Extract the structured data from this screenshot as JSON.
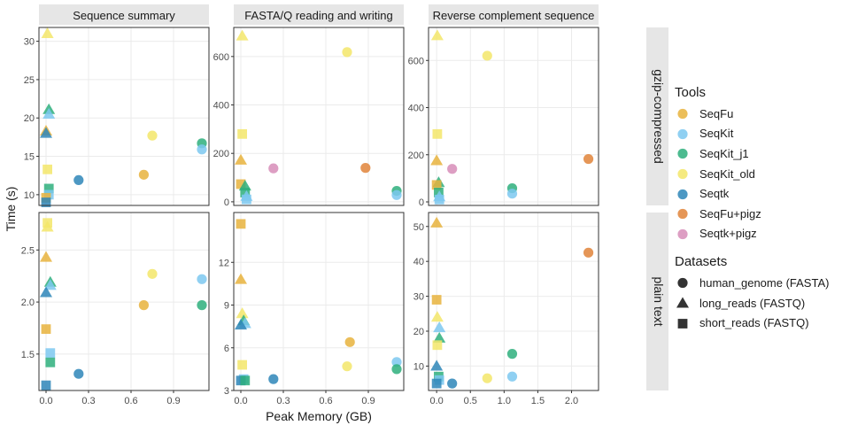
{
  "colors": {
    "SeqFu": "#E8B33D",
    "SeqKit": "#7CC8F0",
    "SeqKit_j1": "#2EAF7D",
    "SeqKit_old": "#F3E66A",
    "Seqtk": "#2E86B8",
    "SeqFu+pigz": "#E0843A",
    "Seqtk+pigz": "#D78DB8",
    "panel_bg": "#ffffff",
    "strip_bg": "#e6e6e6",
    "grid": "#ebebeb",
    "axis_text": "#4d4d4d"
  },
  "axes": {
    "ylabel": "Time (s)",
    "xlabel": "Peak Memory (GB)"
  },
  "legend": {
    "tools_title": "Tools",
    "tools": [
      "SeqFu",
      "SeqKit",
      "SeqKit_j1",
      "SeqKit_old",
      "Seqtk",
      "SeqFu+pigz",
      "Seqtk+pigz"
    ],
    "datasets_title": "Datasets",
    "datasets": [
      {
        "label": "human_genome (FASTA)",
        "shape": "circle"
      },
      {
        "label": "long_reads (FASTQ)",
        "shape": "triangle"
      },
      {
        "label": "short_reads (FASTQ)",
        "shape": "square"
      }
    ]
  },
  "chart_data": {
    "type": "scatter",
    "columns": [
      "Sequence summary",
      "FASTA/Q reading and writing",
      "Reverse complement sequence"
    ],
    "rows": [
      "gzip-compressed",
      "plain text"
    ],
    "xlabel": "Peak Memory (GB)",
    "ylabel": "Time (s)",
    "panels": [
      {
        "col": 0,
        "row": 0,
        "xlim": [
          -0.05,
          1.15
        ],
        "ylim": [
          8.6,
          31.8
        ],
        "xticks": [
          0.0,
          0.3,
          0.6,
          0.9
        ],
        "xtick_labels": [
          "0.0",
          "0.3",
          "0.6",
          "0.9"
        ],
        "yticks": [
          10,
          15,
          20,
          25,
          30
        ],
        "ytick_labels": [
          "10",
          "15",
          "20",
          "25",
          "30"
        ],
        "points": [
          {
            "tool": "SeqKit_old",
            "dataset": "long_reads (FASTQ)",
            "x": 0.01,
            "y": 31.0
          },
          {
            "tool": "SeqKit_j1",
            "dataset": "long_reads (FASTQ)",
            "x": 0.02,
            "y": 21.1
          },
          {
            "tool": "SeqKit",
            "dataset": "long_reads (FASTQ)",
            "x": 0.02,
            "y": 20.5
          },
          {
            "tool": "SeqFu",
            "dataset": "long_reads (FASTQ)",
            "x": 0.0,
            "y": 18.3
          },
          {
            "tool": "Seqtk",
            "dataset": "long_reads (FASTQ)",
            "x": 0.0,
            "y": 18.0
          },
          {
            "tool": "SeqKit_old",
            "dataset": "short_reads (FASTQ)",
            "x": 0.01,
            "y": 13.3
          },
          {
            "tool": "SeqKit_j1",
            "dataset": "short_reads (FASTQ)",
            "x": 0.02,
            "y": 10.8
          },
          {
            "tool": "SeqKit",
            "dataset": "short_reads (FASTQ)",
            "x": 0.02,
            "y": 10.0
          },
          {
            "tool": "SeqFu",
            "dataset": "short_reads (FASTQ)",
            "x": 0.0,
            "y": 9.6
          },
          {
            "tool": "Seqtk",
            "dataset": "short_reads (FASTQ)",
            "x": 0.0,
            "y": 9.0
          },
          {
            "tool": "Seqtk",
            "dataset": "human_genome (FASTA)",
            "x": 0.23,
            "y": 11.9
          },
          {
            "tool": "SeqFu",
            "dataset": "human_genome (FASTA)",
            "x": 0.69,
            "y": 12.6
          },
          {
            "tool": "SeqKit_old",
            "dataset": "human_genome (FASTA)",
            "x": 0.75,
            "y": 17.7
          },
          {
            "tool": "SeqKit_j1",
            "dataset": "human_genome (FASTA)",
            "x": 1.1,
            "y": 16.7
          },
          {
            "tool": "SeqKit",
            "dataset": "human_genome (FASTA)",
            "x": 1.1,
            "y": 15.9
          }
        ]
      },
      {
        "col": 1,
        "row": 0,
        "xlim": [
          -0.05,
          1.15
        ],
        "ylim": [
          -15,
          720
        ],
        "xticks": [
          0.0,
          0.3,
          0.6,
          0.9
        ],
        "xtick_labels": [
          "0.0",
          "0.3",
          "0.6",
          "0.9"
        ],
        "yticks": [
          0,
          200,
          400,
          600
        ],
        "ytick_labels": [
          "0",
          "200",
          "400",
          "600"
        ],
        "points": [
          {
            "tool": "SeqKit_old",
            "dataset": "long_reads (FASTQ)",
            "x": 0.01,
            "y": 685
          },
          {
            "tool": "SeqKit_old",
            "dataset": "human_genome (FASTA)",
            "x": 0.75,
            "y": 618
          },
          {
            "tool": "SeqKit_old",
            "dataset": "short_reads (FASTQ)",
            "x": 0.01,
            "y": 280
          },
          {
            "tool": "SeqFu",
            "dataset": "long_reads (FASTQ)",
            "x": 0.0,
            "y": 172
          },
          {
            "tool": "Seqtk+pigz",
            "dataset": "human_genome (FASTA)",
            "x": 0.23,
            "y": 138
          },
          {
            "tool": "SeqFu+pigz",
            "dataset": "human_genome (FASTA)",
            "x": 0.88,
            "y": 140
          },
          {
            "tool": "SeqFu",
            "dataset": "short_reads (FASTQ)",
            "x": 0.0,
            "y": 73
          },
          {
            "tool": "SeqKit_j1",
            "dataset": "long_reads (FASTQ)",
            "x": 0.03,
            "y": 65
          },
          {
            "tool": "SeqKit_j1",
            "dataset": "short_reads (FASTQ)",
            "x": 0.03,
            "y": 38
          },
          {
            "tool": "SeqKit",
            "dataset": "long_reads (FASTQ)",
            "x": 0.04,
            "y": 22
          },
          {
            "tool": "SeqKit",
            "dataset": "short_reads (FASTQ)",
            "x": 0.04,
            "y": 10
          },
          {
            "tool": "SeqKit_j1",
            "dataset": "human_genome (FASTA)",
            "x": 1.1,
            "y": 45
          },
          {
            "tool": "SeqKit",
            "dataset": "human_genome (FASTA)",
            "x": 1.1,
            "y": 28
          }
        ]
      },
      {
        "col": 2,
        "row": 0,
        "xlim": [
          -0.12,
          2.4
        ],
        "ylim": [
          -15,
          740
        ],
        "xticks": [
          0.0,
          0.5,
          1.0,
          1.5,
          2.0
        ],
        "xtick_labels": [
          "0.0",
          "0.5",
          "1.0",
          "1.5",
          "2.0"
        ],
        "yticks": [
          0,
          200,
          400,
          600
        ],
        "ytick_labels": [
          "0",
          "200",
          "400",
          "600"
        ],
        "points": [
          {
            "tool": "SeqKit_old",
            "dataset": "long_reads (FASTQ)",
            "x": 0.01,
            "y": 705
          },
          {
            "tool": "SeqKit_old",
            "dataset": "human_genome (FASTA)",
            "x": 0.75,
            "y": 620
          },
          {
            "tool": "SeqKit_old",
            "dataset": "short_reads (FASTQ)",
            "x": 0.01,
            "y": 288
          },
          {
            "tool": "SeqFu",
            "dataset": "long_reads (FASTQ)",
            "x": 0.0,
            "y": 175
          },
          {
            "tool": "Seqtk+pigz",
            "dataset": "human_genome (FASTA)",
            "x": 0.23,
            "y": 140
          },
          {
            "tool": "SeqFu+pigz",
            "dataset": "human_genome (FASTA)",
            "x": 2.25,
            "y": 182
          },
          {
            "tool": "SeqKit_j1",
            "dataset": "long_reads (FASTQ)",
            "x": 0.03,
            "y": 82
          },
          {
            "tool": "SeqFu",
            "dataset": "short_reads (FASTQ)",
            "x": 0.0,
            "y": 72
          },
          {
            "tool": "SeqKit_j1",
            "dataset": "short_reads (FASTQ)",
            "x": 0.03,
            "y": 40
          },
          {
            "tool": "SeqKit",
            "dataset": "long_reads (FASTQ)",
            "x": 0.04,
            "y": 22
          },
          {
            "tool": "SeqKit",
            "dataset": "short_reads (FASTQ)",
            "x": 0.04,
            "y": 10
          },
          {
            "tool": "SeqKit_j1",
            "dataset": "human_genome (FASTA)",
            "x": 1.12,
            "y": 58
          },
          {
            "tool": "SeqKit",
            "dataset": "human_genome (FASTA)",
            "x": 1.12,
            "y": 35
          }
        ]
      },
      {
        "col": 0,
        "row": 1,
        "xlim": [
          -0.05,
          1.15
        ],
        "ylim": [
          1.15,
          2.86
        ],
        "xticks": [
          0.0,
          0.3,
          0.6,
          0.9
        ],
        "xtick_labels": [
          "0.0",
          "0.3",
          "0.6",
          "0.9"
        ],
        "yticks": [
          1.5,
          2.0,
          2.5
        ],
        "ytick_labels": [
          "1.5",
          "2.0",
          "2.5"
        ],
        "points": [
          {
            "tool": "SeqKit_old",
            "dataset": "short_reads (FASTQ)",
            "x": 0.01,
            "y": 2.76
          },
          {
            "tool": "SeqKit_old",
            "dataset": "long_reads (FASTQ)",
            "x": 0.01,
            "y": 2.72
          },
          {
            "tool": "SeqFu",
            "dataset": "long_reads (FASTQ)",
            "x": 0.0,
            "y": 2.43
          },
          {
            "tool": "SeqKit_j1",
            "dataset": "long_reads (FASTQ)",
            "x": 0.03,
            "y": 2.19
          },
          {
            "tool": "SeqKit",
            "dataset": "long_reads (FASTQ)",
            "x": 0.03,
            "y": 2.16
          },
          {
            "tool": "Seqtk",
            "dataset": "long_reads (FASTQ)",
            "x": 0.0,
            "y": 2.09
          },
          {
            "tool": "SeqFu",
            "dataset": "short_reads (FASTQ)",
            "x": 0.0,
            "y": 1.74
          },
          {
            "tool": "SeqKit",
            "dataset": "short_reads (FASTQ)",
            "x": 0.03,
            "y": 1.51
          },
          {
            "tool": "SeqKit_j1",
            "dataset": "short_reads (FASTQ)",
            "x": 0.03,
            "y": 1.42
          },
          {
            "tool": "Seqtk",
            "dataset": "short_reads (FASTQ)",
            "x": 0.0,
            "y": 1.2
          },
          {
            "tool": "Seqtk",
            "dataset": "human_genome (FASTA)",
            "x": 0.23,
            "y": 1.31
          },
          {
            "tool": "SeqFu",
            "dataset": "human_genome (FASTA)",
            "x": 0.69,
            "y": 1.97
          },
          {
            "tool": "SeqKit_old",
            "dataset": "human_genome (FASTA)",
            "x": 0.75,
            "y": 2.27
          },
          {
            "tool": "SeqKit_j1",
            "dataset": "human_genome (FASTA)",
            "x": 1.1,
            "y": 1.97
          },
          {
            "tool": "SeqKit",
            "dataset": "human_genome (FASTA)",
            "x": 1.1,
            "y": 2.22
          }
        ]
      },
      {
        "col": 1,
        "row": 1,
        "xlim": [
          -0.05,
          1.15
        ],
        "ylim": [
          3.0,
          15.5
        ],
        "xticks": [
          0.0,
          0.3,
          0.6,
          0.9
        ],
        "xtick_labels": [
          "0.0",
          "0.3",
          "0.6",
          "0.9"
        ],
        "yticks": [
          3,
          6,
          9,
          12
        ],
        "ytick_labels": [
          "3",
          "6",
          "9",
          "12"
        ],
        "points": [
          {
            "tool": "SeqFu",
            "dataset": "short_reads (FASTQ)",
            "x": 0.0,
            "y": 14.7
          },
          {
            "tool": "SeqFu",
            "dataset": "long_reads (FASTQ)",
            "x": 0.0,
            "y": 10.8
          },
          {
            "tool": "SeqKit_old",
            "dataset": "long_reads (FASTQ)",
            "x": 0.01,
            "y": 8.4
          },
          {
            "tool": "SeqKit_j1",
            "dataset": "long_reads (FASTQ)",
            "x": 0.02,
            "y": 7.9
          },
          {
            "tool": "SeqKit",
            "dataset": "long_reads (FASTQ)",
            "x": 0.03,
            "y": 7.7
          },
          {
            "tool": "Seqtk",
            "dataset": "long_reads (FASTQ)",
            "x": 0.0,
            "y": 7.6
          },
          {
            "tool": "SeqKit_old",
            "dataset": "short_reads (FASTQ)",
            "x": 0.01,
            "y": 4.8
          },
          {
            "tool": "SeqKit",
            "dataset": "short_reads (FASTQ)",
            "x": 0.02,
            "y": 3.8
          },
          {
            "tool": "Seqtk",
            "dataset": "short_reads (FASTQ)",
            "x": 0.0,
            "y": 3.7
          },
          {
            "tool": "SeqKit_j1",
            "dataset": "short_reads (FASTQ)",
            "x": 0.03,
            "y": 3.7
          },
          {
            "tool": "Seqtk",
            "dataset": "human_genome (FASTA)",
            "x": 0.23,
            "y": 3.8
          },
          {
            "tool": "SeqFu",
            "dataset": "human_genome (FASTA)",
            "x": 0.77,
            "y": 6.4
          },
          {
            "tool": "SeqKit_old",
            "dataset": "human_genome (FASTA)",
            "x": 0.75,
            "y": 4.7
          },
          {
            "tool": "SeqKit",
            "dataset": "human_genome (FASTA)",
            "x": 1.1,
            "y": 5.0
          },
          {
            "tool": "SeqKit_j1",
            "dataset": "human_genome (FASTA)",
            "x": 1.1,
            "y": 4.5
          }
        ]
      },
      {
        "col": 2,
        "row": 1,
        "xlim": [
          -0.12,
          2.4
        ],
        "ylim": [
          3.0,
          54
        ],
        "xticks": [
          0.0,
          0.5,
          1.0,
          1.5,
          2.0
        ],
        "xtick_labels": [
          "0.0",
          "0.5",
          "1.0",
          "1.5",
          "2.0"
        ],
        "yticks": [
          10,
          20,
          30,
          40,
          50
        ],
        "ytick_labels": [
          "10",
          "20",
          "30",
          "40",
          "50"
        ],
        "points": [
          {
            "tool": "SeqFu",
            "dataset": "long_reads (FASTQ)",
            "x": 0.0,
            "y": 51.0
          },
          {
            "tool": "SeqFu",
            "dataset": "short_reads (FASTQ)",
            "x": 0.0,
            "y": 29.0
          },
          {
            "tool": "SeqKit_old",
            "dataset": "long_reads (FASTQ)",
            "x": 0.01,
            "y": 24.0
          },
          {
            "tool": "SeqKit",
            "dataset": "long_reads (FASTQ)",
            "x": 0.04,
            "y": 21.0
          },
          {
            "tool": "SeqKit_j1",
            "dataset": "long_reads (FASTQ)",
            "x": 0.04,
            "y": 18.0
          },
          {
            "tool": "SeqKit_old",
            "dataset": "short_reads (FASTQ)",
            "x": 0.01,
            "y": 16.0
          },
          {
            "tool": "Seqtk",
            "dataset": "long_reads (FASTQ)",
            "x": 0.0,
            "y": 10.0
          },
          {
            "tool": "SeqKit_j1",
            "dataset": "short_reads (FASTQ)",
            "x": 0.03,
            "y": 7.0
          },
          {
            "tool": "SeqKit",
            "dataset": "short_reads (FASTQ)",
            "x": 0.04,
            "y": 6.0
          },
          {
            "tool": "Seqtk",
            "dataset": "short_reads (FASTQ)",
            "x": 0.0,
            "y": 5.0
          },
          {
            "tool": "Seqtk",
            "dataset": "human_genome (FASTA)",
            "x": 0.23,
            "y": 5.0
          },
          {
            "tool": "SeqKit_old",
            "dataset": "human_genome (FASTA)",
            "x": 0.75,
            "y": 6.5
          },
          {
            "tool": "SeqKit_j1",
            "dataset": "human_genome (FASTA)",
            "x": 1.12,
            "y": 13.5
          },
          {
            "tool": "SeqKit",
            "dataset": "human_genome (FASTA)",
            "x": 1.12,
            "y": 7.0
          },
          {
            "tool": "SeqFu+pigz",
            "dataset": "human_genome (FASTA)",
            "x": 2.25,
            "y": 42.5
          }
        ]
      }
    ]
  }
}
